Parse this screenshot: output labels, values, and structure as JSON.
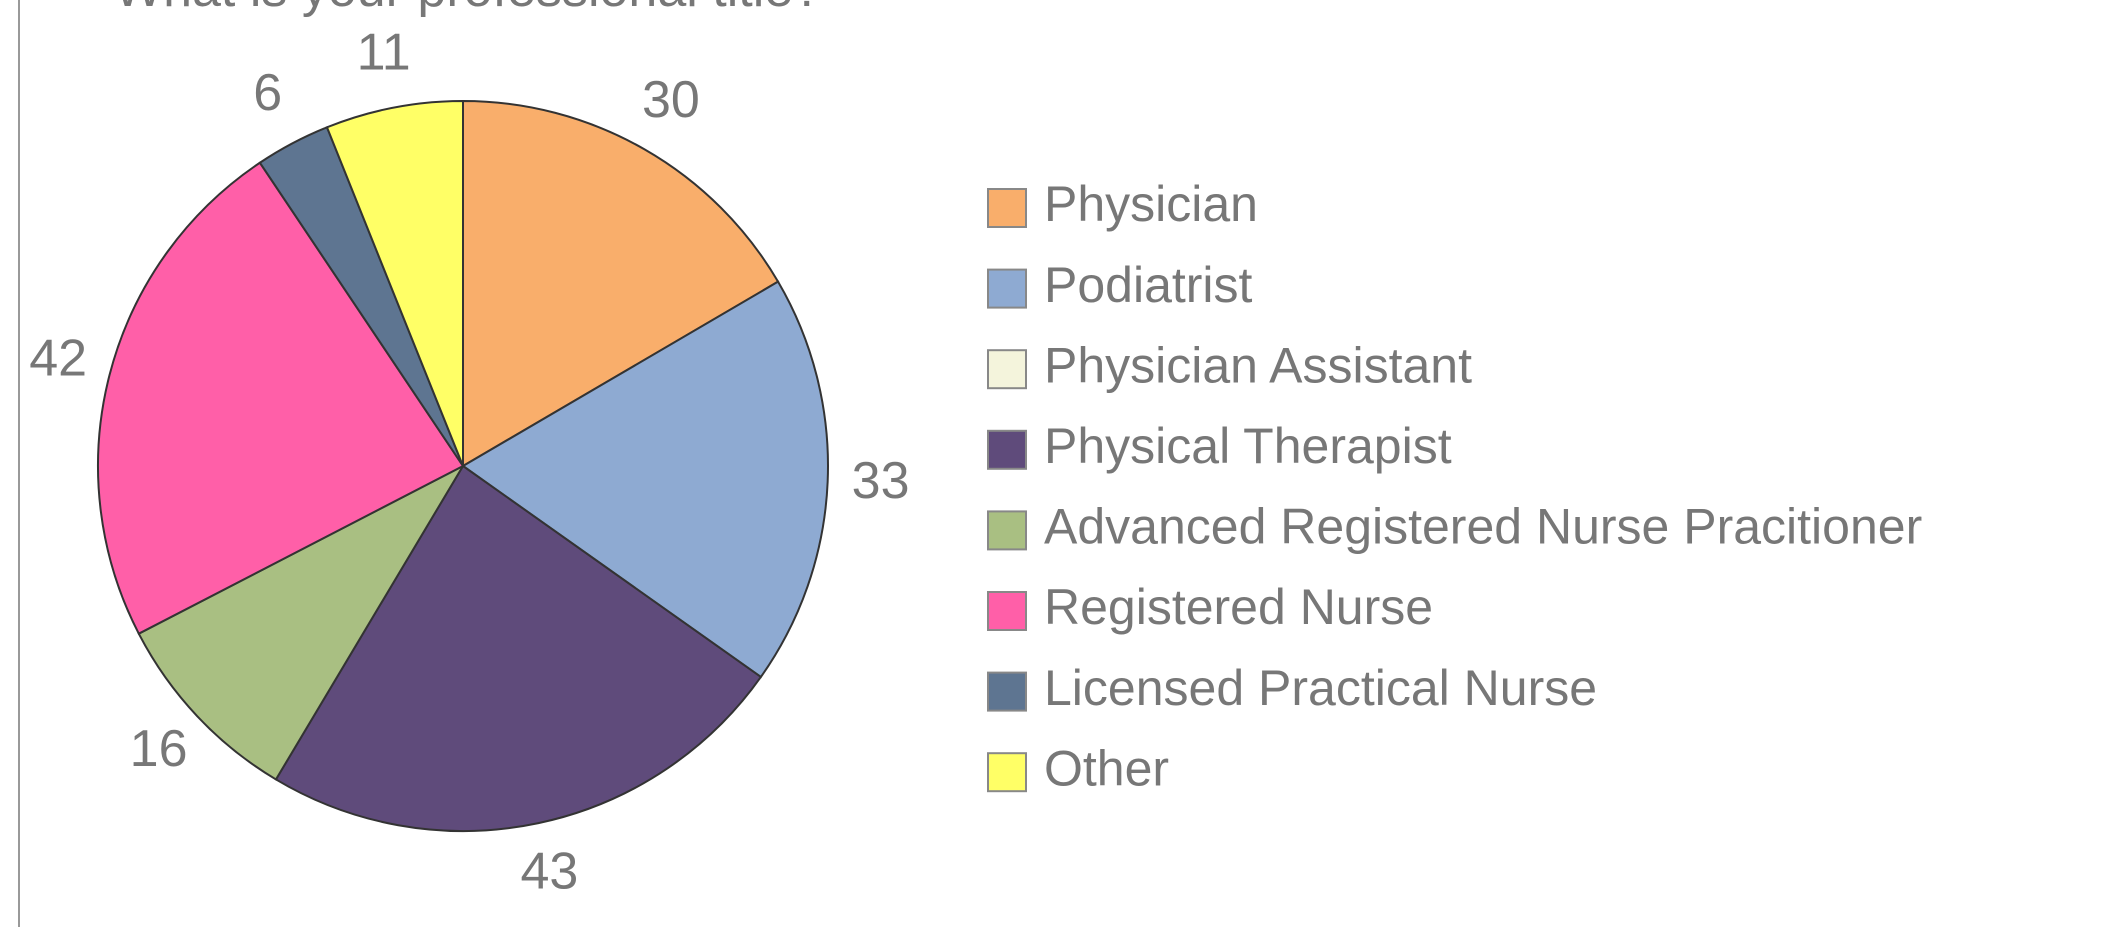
{
  "chart_data": {
    "type": "pie",
    "title": "What is your professional title?",
    "categories": [
      "Physician",
      "Podiatrist",
      "Physician  Assistant",
      "Physical Therapist",
      "Advanced Registered Nurse Pracitioner",
      "Registered Nurse",
      "Licensed Practical Nurse",
      "Other"
    ],
    "values": [
      30,
      33,
      0,
      43,
      16,
      42,
      6,
      11
    ],
    "colors": [
      "#f9ae6b",
      "#8eaad2",
      "#f4f4dc",
      "#5f4b7b",
      "#a9bf82",
      "#ff5fa8",
      "#5e7591",
      "#ffff66"
    ],
    "legend": "right"
  }
}
